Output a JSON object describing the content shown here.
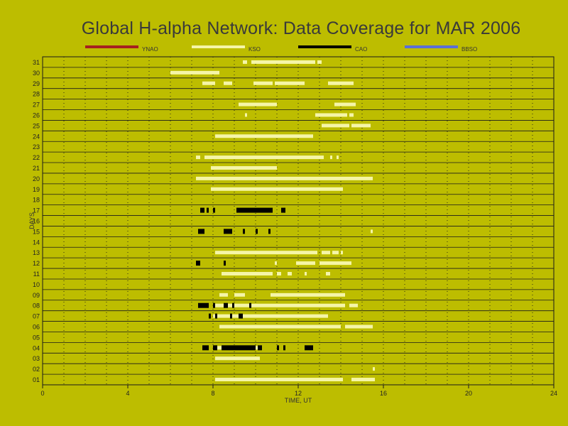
{
  "chart_data": {
    "type": "bar",
    "title": "Global H-alpha Network: Data Coverage for MAR 2006",
    "xlabel": "TIME, UT",
    "ylabel": "DAYS",
    "xlim": [
      0,
      24
    ],
    "xticks": [
      0,
      4,
      8,
      12,
      16,
      20,
      24
    ],
    "days": [
      "01",
      "02",
      "03",
      "04",
      "05",
      "06",
      "07",
      "08",
      "09",
      "10",
      "11",
      "12",
      "13",
      "14",
      "15",
      "16",
      "17",
      "18",
      "19",
      "20",
      "21",
      "22",
      "23",
      "24",
      "25",
      "26",
      "27",
      "28",
      "29",
      "30",
      "31"
    ],
    "grid": true,
    "legend_placement": "top",
    "series": [
      {
        "name": "YNAO",
        "color": "#a52020",
        "segments": []
      },
      {
        "name": "KSO",
        "color": "#f5f5a8",
        "segments": [
          {
            "day": 1,
            "ranges": [
              [
                8.1,
                14.1
              ],
              [
                14.5,
                15.6
              ]
            ]
          },
          {
            "day": 2,
            "ranges": [
              [
                15.5,
                15.6
              ]
            ]
          },
          {
            "day": 3,
            "ranges": [
              [
                8.1,
                10.2
              ]
            ]
          },
          {
            "day": 4,
            "ranges": [
              [
                8.2,
                10.3
              ]
            ]
          },
          {
            "day": 6,
            "ranges": [
              [
                8.3,
                14.0
              ],
              [
                14.2,
                15.5
              ]
            ]
          },
          {
            "day": 7,
            "ranges": [
              [
                8.0,
                13.4
              ]
            ]
          },
          {
            "day": 8,
            "ranges": [
              [
                8.0,
                14.2
              ],
              [
                14.4,
                14.8
              ]
            ]
          },
          {
            "day": 9,
            "ranges": [
              [
                8.3,
                8.7
              ],
              [
                9.0,
                9.5
              ],
              [
                10.7,
                14.2
              ]
            ]
          },
          {
            "day": 11,
            "ranges": [
              [
                8.4,
                10.8
              ],
              [
                11.0,
                11.2
              ],
              [
                11.5,
                11.7
              ],
              [
                12.3,
                12.4
              ],
              [
                13.3,
                13.5
              ]
            ]
          },
          {
            "day": 12,
            "ranges": [
              [
                10.9,
                11.0
              ],
              [
                11.9,
                12.8
              ],
              [
                13.0,
                14.5
              ]
            ]
          },
          {
            "day": 13,
            "ranges": [
              [
                8.1,
                12.9
              ],
              [
                13.1,
                13.5
              ],
              [
                13.6,
                13.9
              ],
              [
                14.0,
                14.1
              ]
            ]
          },
          {
            "day": 15,
            "ranges": [
              [
                15.4,
                15.5
              ]
            ]
          },
          {
            "day": 19,
            "ranges": [
              [
                7.9,
                14.1
              ]
            ]
          },
          {
            "day": 20,
            "ranges": [
              [
                7.2,
                15.5
              ]
            ]
          },
          {
            "day": 21,
            "ranges": [
              [
                7.9,
                11.0
              ]
            ]
          },
          {
            "day": 22,
            "ranges": [
              [
                7.2,
                7.4
              ],
              [
                7.6,
                13.2
              ],
              [
                13.5,
                13.6
              ],
              [
                13.8,
                13.9
              ]
            ]
          },
          {
            "day": 24,
            "ranges": [
              [
                8.1,
                12.7
              ]
            ]
          },
          {
            "day": 25,
            "ranges": [
              [
                13.1,
                14.4
              ],
              [
                14.5,
                15.4
              ]
            ]
          },
          {
            "day": 26,
            "ranges": [
              [
                9.5,
                9.6
              ],
              [
                12.8,
                14.3
              ],
              [
                14.4,
                14.6
              ]
            ]
          },
          {
            "day": 27,
            "ranges": [
              [
                9.2,
                11.0
              ],
              [
                13.7,
                14.7
              ]
            ]
          },
          {
            "day": 28,
            "ranges": []
          },
          {
            "day": 29,
            "ranges": [
              [
                7.5,
                8.1
              ],
              [
                8.5,
                8.9
              ],
              [
                9.9,
                10.8
              ],
              [
                10.9,
                12.3
              ],
              [
                13.4,
                14.6
              ]
            ]
          },
          {
            "day": 30,
            "ranges": [
              [
                6.0,
                8.3
              ]
            ]
          },
          {
            "day": 31,
            "ranges": [
              [
                9.4,
                9.6
              ],
              [
                9.8,
                12.8
              ],
              [
                12.9,
                13.1
              ]
            ]
          }
        ]
      },
      {
        "name": "CAO",
        "color": "#000000",
        "segments": [
          {
            "day": 4,
            "ranges": [
              [
                7.5,
                7.8
              ],
              [
                8.0,
                8.2
              ],
              [
                8.4,
                10.0
              ],
              [
                10.1,
                10.3
              ],
              [
                11.0,
                11.1
              ],
              [
                11.3,
                11.4
              ],
              [
                12.3,
                12.7
              ]
            ]
          },
          {
            "day": 7,
            "ranges": [
              [
                7.8,
                7.9
              ],
              [
                8.1,
                8.2
              ],
              [
                8.8,
                8.9
              ],
              [
                9.2,
                9.4
              ]
            ]
          },
          {
            "day": 8,
            "ranges": [
              [
                7.3,
                7.8
              ],
              [
                8.0,
                8.1
              ],
              [
                8.5,
                8.7
              ],
              [
                8.9,
                9.0
              ],
              [
                9.7,
                9.8
              ]
            ]
          },
          {
            "day": 12,
            "ranges": [
              [
                7.2,
                7.4
              ],
              [
                8.5,
                8.6
              ]
            ]
          },
          {
            "day": 15,
            "ranges": [
              [
                7.3,
                7.6
              ],
              [
                8.5,
                8.9
              ],
              [
                9.4,
                9.5
              ],
              [
                10.0,
                10.1
              ],
              [
                10.6,
                10.7
              ]
            ]
          },
          {
            "day": 17,
            "ranges": [
              [
                7.4,
                7.6
              ],
              [
                7.7,
                7.8
              ],
              [
                8.0,
                8.1
              ],
              [
                9.1,
                10.8
              ],
              [
                11.2,
                11.4
              ]
            ]
          }
        ]
      },
      {
        "name": "BBSO",
        "color": "#5b6fd6",
        "segments": []
      }
    ]
  }
}
